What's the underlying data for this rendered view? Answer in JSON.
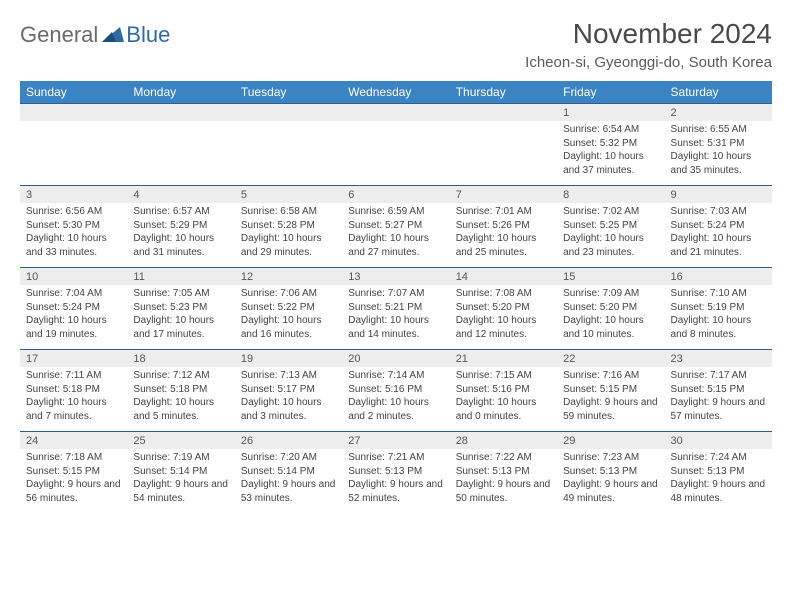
{
  "brand": {
    "part1": "General",
    "part2": "Blue"
  },
  "title": "November 2024",
  "location": "Icheon-si, Gyeonggi-do, South Korea",
  "colors": {
    "header_bg": "#3b84c4",
    "header_text": "#ffffff",
    "daynum_bg": "#ededed",
    "row_border": "#2f5d8a",
    "logo_gray": "#6a6a6a",
    "logo_blue": "#2f6aa8"
  },
  "day_headers": [
    "Sunday",
    "Monday",
    "Tuesday",
    "Wednesday",
    "Thursday",
    "Friday",
    "Saturday"
  ],
  "weeks": [
    [
      null,
      null,
      null,
      null,
      null,
      {
        "n": "1",
        "sunrise": "6:54 AM",
        "sunset": "5:32 PM",
        "daylight": "10 hours and 37 minutes."
      },
      {
        "n": "2",
        "sunrise": "6:55 AM",
        "sunset": "5:31 PM",
        "daylight": "10 hours and 35 minutes."
      }
    ],
    [
      {
        "n": "3",
        "sunrise": "6:56 AM",
        "sunset": "5:30 PM",
        "daylight": "10 hours and 33 minutes."
      },
      {
        "n": "4",
        "sunrise": "6:57 AM",
        "sunset": "5:29 PM",
        "daylight": "10 hours and 31 minutes."
      },
      {
        "n": "5",
        "sunrise": "6:58 AM",
        "sunset": "5:28 PM",
        "daylight": "10 hours and 29 minutes."
      },
      {
        "n": "6",
        "sunrise": "6:59 AM",
        "sunset": "5:27 PM",
        "daylight": "10 hours and 27 minutes."
      },
      {
        "n": "7",
        "sunrise": "7:01 AM",
        "sunset": "5:26 PM",
        "daylight": "10 hours and 25 minutes."
      },
      {
        "n": "8",
        "sunrise": "7:02 AM",
        "sunset": "5:25 PM",
        "daylight": "10 hours and 23 minutes."
      },
      {
        "n": "9",
        "sunrise": "7:03 AM",
        "sunset": "5:24 PM",
        "daylight": "10 hours and 21 minutes."
      }
    ],
    [
      {
        "n": "10",
        "sunrise": "7:04 AM",
        "sunset": "5:24 PM",
        "daylight": "10 hours and 19 minutes."
      },
      {
        "n": "11",
        "sunrise": "7:05 AM",
        "sunset": "5:23 PM",
        "daylight": "10 hours and 17 minutes."
      },
      {
        "n": "12",
        "sunrise": "7:06 AM",
        "sunset": "5:22 PM",
        "daylight": "10 hours and 16 minutes."
      },
      {
        "n": "13",
        "sunrise": "7:07 AM",
        "sunset": "5:21 PM",
        "daylight": "10 hours and 14 minutes."
      },
      {
        "n": "14",
        "sunrise": "7:08 AM",
        "sunset": "5:20 PM",
        "daylight": "10 hours and 12 minutes."
      },
      {
        "n": "15",
        "sunrise": "7:09 AM",
        "sunset": "5:20 PM",
        "daylight": "10 hours and 10 minutes."
      },
      {
        "n": "16",
        "sunrise": "7:10 AM",
        "sunset": "5:19 PM",
        "daylight": "10 hours and 8 minutes."
      }
    ],
    [
      {
        "n": "17",
        "sunrise": "7:11 AM",
        "sunset": "5:18 PM",
        "daylight": "10 hours and 7 minutes."
      },
      {
        "n": "18",
        "sunrise": "7:12 AM",
        "sunset": "5:18 PM",
        "daylight": "10 hours and 5 minutes."
      },
      {
        "n": "19",
        "sunrise": "7:13 AM",
        "sunset": "5:17 PM",
        "daylight": "10 hours and 3 minutes."
      },
      {
        "n": "20",
        "sunrise": "7:14 AM",
        "sunset": "5:16 PM",
        "daylight": "10 hours and 2 minutes."
      },
      {
        "n": "21",
        "sunrise": "7:15 AM",
        "sunset": "5:16 PM",
        "daylight": "10 hours and 0 minutes."
      },
      {
        "n": "22",
        "sunrise": "7:16 AM",
        "sunset": "5:15 PM",
        "daylight": "9 hours and 59 minutes."
      },
      {
        "n": "23",
        "sunrise": "7:17 AM",
        "sunset": "5:15 PM",
        "daylight": "9 hours and 57 minutes."
      }
    ],
    [
      {
        "n": "24",
        "sunrise": "7:18 AM",
        "sunset": "5:15 PM",
        "daylight": "9 hours and 56 minutes."
      },
      {
        "n": "25",
        "sunrise": "7:19 AM",
        "sunset": "5:14 PM",
        "daylight": "9 hours and 54 minutes."
      },
      {
        "n": "26",
        "sunrise": "7:20 AM",
        "sunset": "5:14 PM",
        "daylight": "9 hours and 53 minutes."
      },
      {
        "n": "27",
        "sunrise": "7:21 AM",
        "sunset": "5:13 PM",
        "daylight": "9 hours and 52 minutes."
      },
      {
        "n": "28",
        "sunrise": "7:22 AM",
        "sunset": "5:13 PM",
        "daylight": "9 hours and 50 minutes."
      },
      {
        "n": "29",
        "sunrise": "7:23 AM",
        "sunset": "5:13 PM",
        "daylight": "9 hours and 49 minutes."
      },
      {
        "n": "30",
        "sunrise": "7:24 AM",
        "sunset": "5:13 PM",
        "daylight": "9 hours and 48 minutes."
      }
    ]
  ],
  "labels": {
    "sunrise": "Sunrise:",
    "sunset": "Sunset:",
    "daylight": "Daylight:"
  }
}
